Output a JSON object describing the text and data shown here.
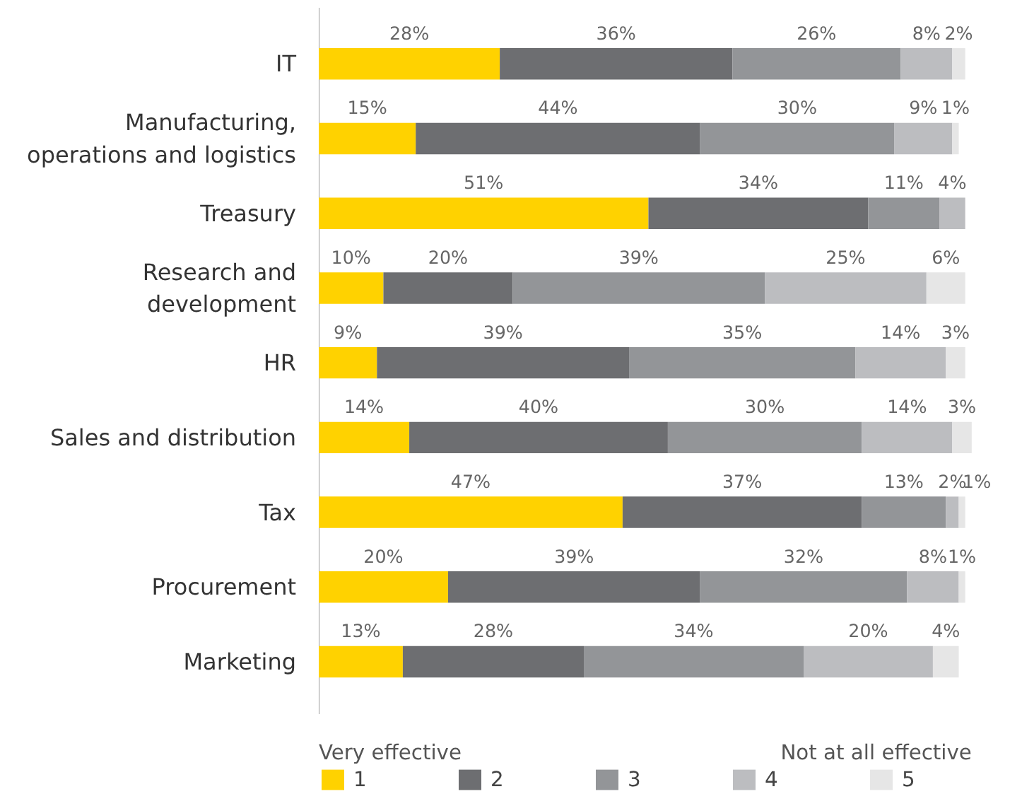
{
  "chart_data": {
    "type": "bar",
    "orientation": "horizontal",
    "stacked": true,
    "grid": false,
    "legend": "bottom left",
    "tick_labels": "y",
    "categories": [
      "IT",
      "Manufacturing,\noperations and logistics",
      "Treasury",
      "Research and\ndevelopment",
      "HR",
      "Sales and distribution",
      "Tax",
      "Procurement",
      "Marketing"
    ],
    "series": [
      {
        "name": "1",
        "color": "#ffd200",
        "values": [
          28,
          15,
          51,
          10,
          9,
          14,
          47,
          20,
          13
        ],
        "value_labels": [
          "28%",
          "15%",
          "51%",
          "10%",
          "9%",
          "14%",
          "47%",
          "20%",
          "13%"
        ]
      },
      {
        "name": "2",
        "color": "#6d6e71",
        "values": [
          36,
          44,
          34,
          20,
          39,
          40,
          37,
          39,
          28
        ],
        "value_labels": [
          "36%",
          "44%",
          "34%",
          "20%",
          "39%",
          "40%",
          "37%",
          "39%",
          "28%"
        ]
      },
      {
        "name": "3",
        "color": "#939598",
        "values": [
          26,
          30,
          11,
          39,
          35,
          30,
          13,
          32,
          34
        ],
        "value_labels": [
          "26%",
          "30%",
          "11%",
          "39%",
          "35%",
          "30%",
          "13%",
          "32%",
          "34%"
        ]
      },
      {
        "name": "4",
        "color": "#bcbdc0",
        "values": [
          8,
          9,
          4,
          25,
          14,
          14,
          2,
          8,
          20
        ],
        "value_labels": [
          "8%",
          "9%",
          "4%",
          "25%",
          "14%",
          "14%",
          "2%",
          "8%",
          "20%"
        ]
      },
      {
        "name": "5",
        "color": "#e6e6e6",
        "values": [
          2,
          1,
          null,
          6,
          3,
          3,
          1,
          1,
          4
        ],
        "value_labels": [
          "2%",
          "1%",
          null,
          "6%",
          "3%",
          "3%",
          "1%",
          "1%",
          "4%"
        ]
      }
    ],
    "annotations": [
      "Very effective",
      "Not at all effective"
    ]
  }
}
